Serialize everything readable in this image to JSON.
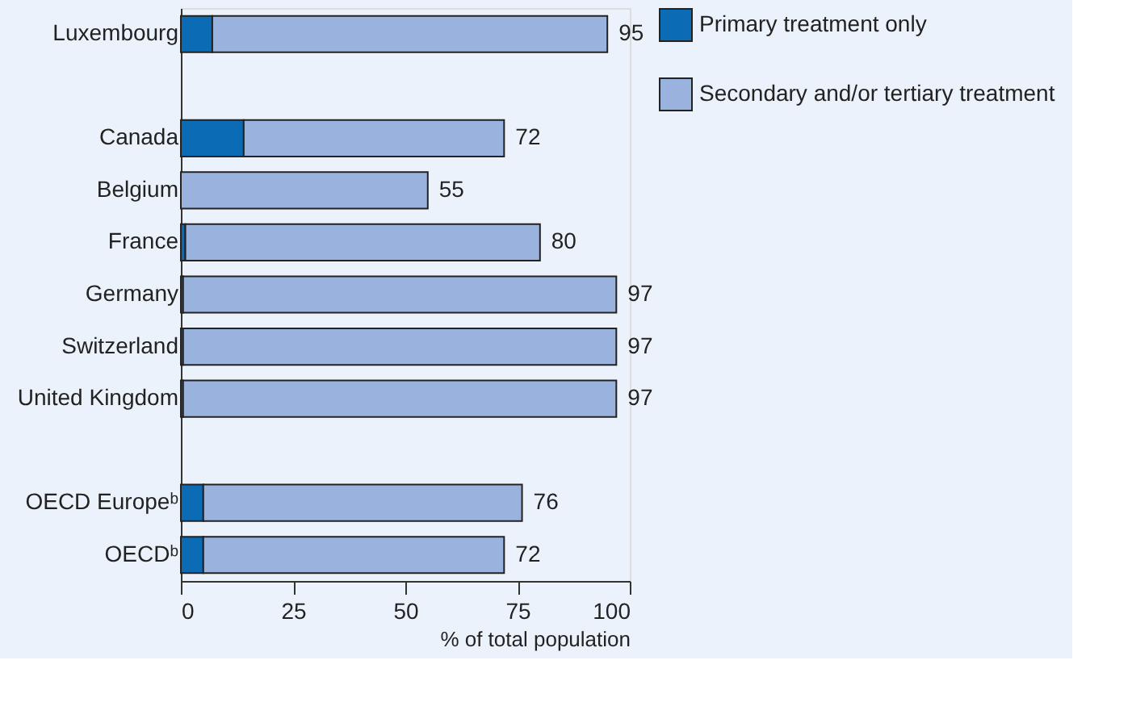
{
  "chart_data": {
    "type": "bar",
    "orientation": "horizontal",
    "stacked": true,
    "categories": [
      "Luxembourg",
      null,
      "Canada",
      "Belgium",
      "France",
      "Germany",
      "Switzerland",
      "United Kingdom",
      null,
      "OECD Europeᵇ",
      "OECDᵇ"
    ],
    "series": [
      {
        "name": "Primary treatment only",
        "color": "#0b6cb5",
        "values": [
          7,
          null,
          14,
          0,
          1,
          0.5,
          0.5,
          0.5,
          null,
          5,
          5
        ]
      },
      {
        "name": "Secondary and/or tertiary treatment",
        "color": "#9ab3de",
        "values": [
          88,
          null,
          58,
          55,
          79,
          96.5,
          96.5,
          96.5,
          null,
          71,
          67
        ]
      }
    ],
    "totals": [
      "95",
      null,
      "72",
      "55",
      "80",
      "97",
      "97",
      "97",
      null,
      "76",
      "72"
    ],
    "xlabel": "% of total population",
    "xlim": [
      0,
      100
    ],
    "xticks": [
      0,
      25,
      50,
      75,
      100
    ],
    "grid": false,
    "legend": "right"
  }
}
